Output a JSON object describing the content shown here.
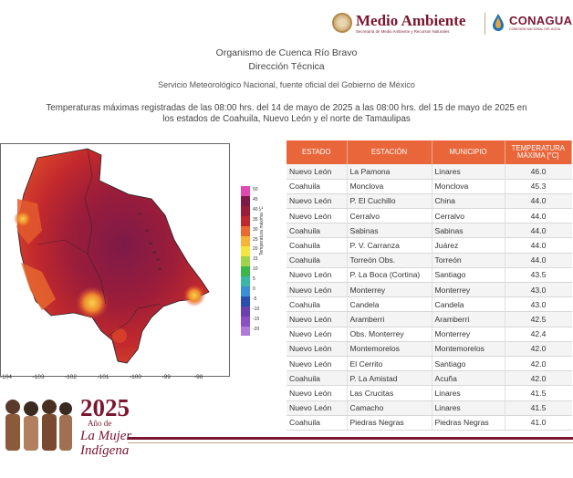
{
  "header": {
    "brand1_title": "Medio Ambiente",
    "brand1_sub": "Secretaría de Medio Ambiente y Recursos Naturales",
    "brand2_title": "CONAGUA",
    "brand2_sub": "COMISIÓN NACIONAL DEL AGUA"
  },
  "intro": {
    "line1": "Organismo de Cuenca Río Bravo",
    "line2": "Dirección Técnica",
    "line3": "Servicio Meteorológico Nacional, fuente oficial del Gobierno de México",
    "line4a": "Temperaturas máximas registradas de las 08:00 hrs. del 14 de mayo de 2025 a las 08:00 hrs. del 15 de mayo de 2025 en",
    "line4b": "los estados de Coahuila, Nuevo León y el norte de Tamaulipas"
  },
  "map": {
    "colorbar_title": "Temperatura máxima °C",
    "colorbar_ticks": [
      "50",
      "45",
      "40",
      "35",
      "30",
      "25",
      "20",
      "15",
      "10",
      "5",
      "0",
      "-5",
      "-10",
      "-15",
      "-20"
    ],
    "lon_ticks": [
      "-104",
      "-103",
      "-102",
      "-101",
      "-100",
      "-99",
      "-98"
    ]
  },
  "table": {
    "headers": [
      "ESTADO",
      "ESTACIÓN",
      "MUNICIPIO",
      "TEMPERATURA MÁXIMA [°C]"
    ],
    "rows": [
      [
        "Nuevo León",
        "La Pamona",
        "Linares",
        "46.0"
      ],
      [
        "Coahuila",
        "Monclova",
        "Monclova",
        "45.3"
      ],
      [
        "Nuevo León",
        "P. El Cuchillo",
        "China",
        "44.0"
      ],
      [
        "Nuevo León",
        "Cerralvo",
        "Cerralvo",
        "44.0"
      ],
      [
        "Coahuila",
        "Sabinas",
        "Sabinas",
        "44.0"
      ],
      [
        "Coahuila",
        "P. V. Carranza",
        "Juárez",
        "44.0"
      ],
      [
        "Coahuila",
        "Torreón Obs.",
        "Torreón",
        "44.0"
      ],
      [
        "Nuevo León",
        "P. La Boca (Cortina)",
        "Santiago",
        "43.5"
      ],
      [
        "Nuevo León",
        "Monterrey",
        "Monterrey",
        "43.0"
      ],
      [
        "Coahuila",
        "Candela",
        "Candela",
        "43.0"
      ],
      [
        "Nuevo León",
        "Aramberri",
        "Aramberri",
        "42.5"
      ],
      [
        "Nuevo León",
        "Obs. Monterrey",
        "Monterrey",
        "42.4"
      ],
      [
        "Nuevo León",
        "Montemorelos",
        "Montemorelos",
        "42.0"
      ],
      [
        "Nuevo León",
        "El Cerrito",
        "Santiago",
        "42.0"
      ],
      [
        "Coahuila",
        "P. La Amistad",
        "Acuña",
        "42.0"
      ],
      [
        "Nuevo León",
        "Las Crucitas",
        "Linares",
        "41.5"
      ],
      [
        "Nuevo León",
        "Camacho",
        "Linares",
        "41.5"
      ],
      [
        "Coahuila",
        "Piedras Negras",
        "Piedras Negras",
        "41.0"
      ]
    ]
  },
  "footer": {
    "year": "2025",
    "year_sub": "Año de",
    "line1": "La Mujer",
    "line2": "Indígena"
  },
  "colors": {
    "brand": "#7a1630",
    "table_header": "#e8663a"
  }
}
